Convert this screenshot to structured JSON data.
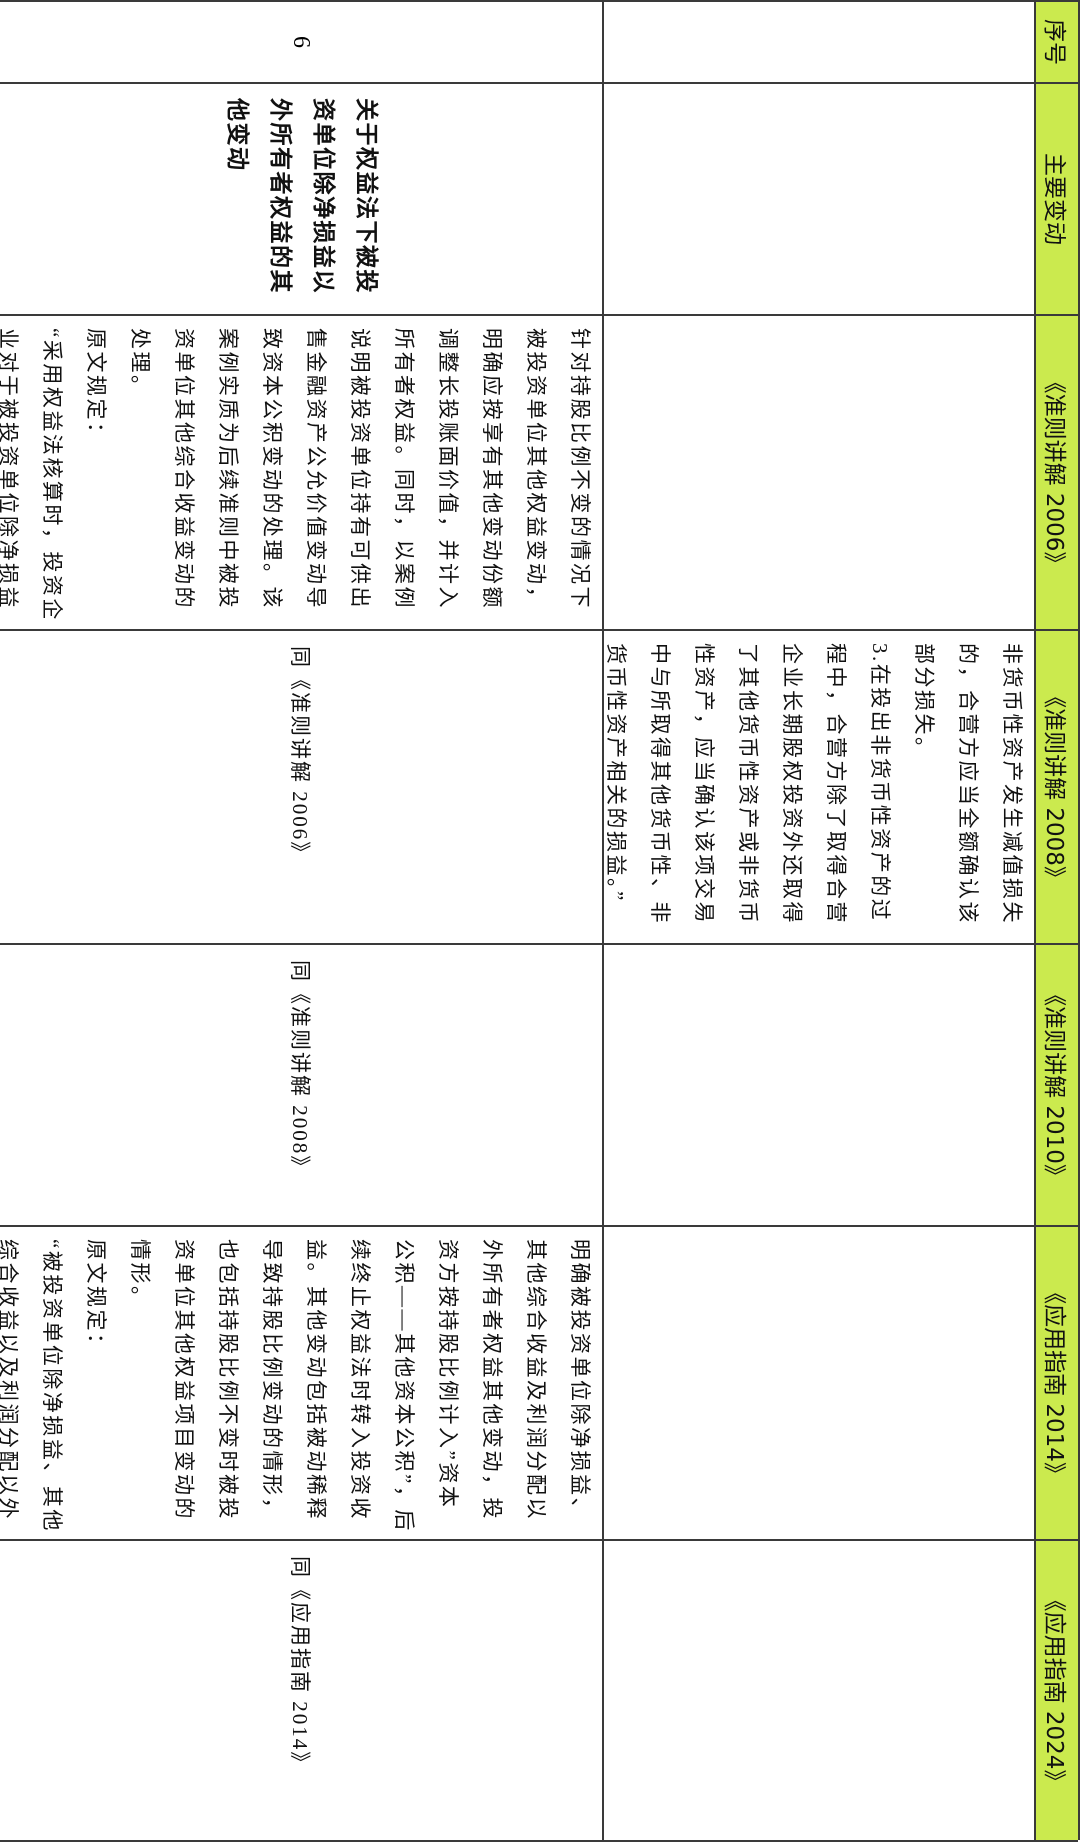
{
  "header": {
    "seq": "序号",
    "change": "主要变动",
    "col_2006": "《准则讲解 2006》",
    "col_2008": "《准则讲解 2008》",
    "col_2010": "《准则讲解 2010》",
    "col_2014": "《应用指南 2014》",
    "col_2024": "《应用指南 2024》"
  },
  "colors": {
    "header_bg": "#cbea4e",
    "border": "#3a3a3a"
  },
  "rows": [
    {
      "seq": "",
      "change": "",
      "col_2006": "",
      "col_2008": "非货币性资产发生减值损失\n的，合营方应当全额确认该\n部分损失。\n3.在投出非货币性资产的过\n程中，合营方除了取得合营\n企业长期股权投资外还取得\n了其他货币性资产或非货币\n性资产，应当确认该项交易\n中与所取得其他货币性、非\n货币性资产相关的损益。”",
      "col_2010": "",
      "col_2014": "",
      "col_2024": ""
    },
    {
      "seq": "6",
      "change": "关于权益法下被投\n资单位除净损益以\n外所有者权益的其\n他变动",
      "col_2006": "针对持股比例不变的情况下\n被投资单位其他权益变动，\n明确应按享有其他变动份额\n调整长投账面价值，并计入\n所有者权益。同时，以案例\n说明被投资单位持有可供出\n售金融资产公允价值变动导\n致资本公积变动的处理。该\n案例实质为后续准则中被投\n资单位其他综合收益变动的\n处理。\n原文规定：\n“采用权益法核算时，投资企\n业对于被投资单位除净损益",
      "col_2008": "同《准则讲解 2006》",
      "col_2010": "同《准则讲解 2008》",
      "col_2014": "明确被投资单位除净损益、\n其他综合收益及利润分配以\n外所有者权益其他变动，投\n资方按持股比例计入”资本\n公积——其他资本公积”，后\n续终止权益法时转入投资收\n益。其他变动包括被动稀释\n导致持股比例变动的情形，\n也包括持股比例不变时被投\n资单位其他权益项目变动的\n情形。\n原文规定：\n“被投资单位除净损益、其他\n综合收益以及利润分配以外",
      "col_2024": "同《应用指南 2014》"
    }
  ]
}
